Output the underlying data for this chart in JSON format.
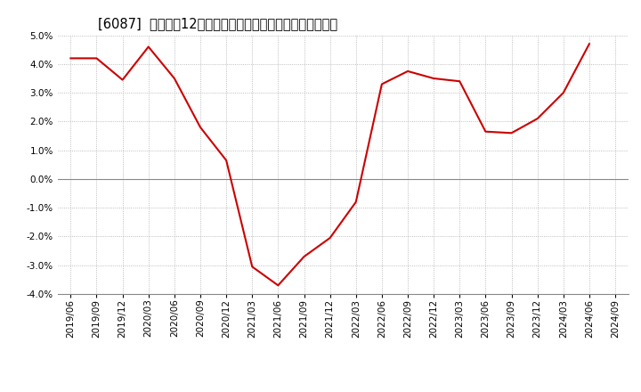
{
  "title": "[6087]  売上高の12か月移動合計の対前年同期増減率の推移",
  "x_labels": [
    "2019/06",
    "2019/09",
    "2019/12",
    "2020/03",
    "2020/06",
    "2020/09",
    "2020/12",
    "2021/03",
    "2021/06",
    "2021/09",
    "2021/12",
    "2022/03",
    "2022/06",
    "2022/09",
    "2022/12",
    "2023/03",
    "2023/06",
    "2023/09",
    "2023/12",
    "2024/03",
    "2024/06",
    "2024/09"
  ],
  "values": [
    4.2,
    4.2,
    3.45,
    4.6,
    3.5,
    1.8,
    0.65,
    -3.05,
    -3.7,
    -2.7,
    -2.05,
    -0.8,
    3.3,
    3.75,
    3.5,
    3.4,
    1.65,
    1.6,
    2.1,
    3.0,
    4.7,
    null
  ],
  "line_color": "#cc0000",
  "background_color": "#ffffff",
  "grid_color": "#aaaaaa",
  "zero_line_color": "#888888",
  "ylim": [
    -4.0,
    5.0
  ],
  "yticks": [
    -4.0,
    -3.0,
    -2.0,
    -1.0,
    0.0,
    1.0,
    2.0,
    3.0,
    4.0,
    5.0
  ],
  "title_fontsize": 10.5,
  "tick_fontsize": 7.5
}
